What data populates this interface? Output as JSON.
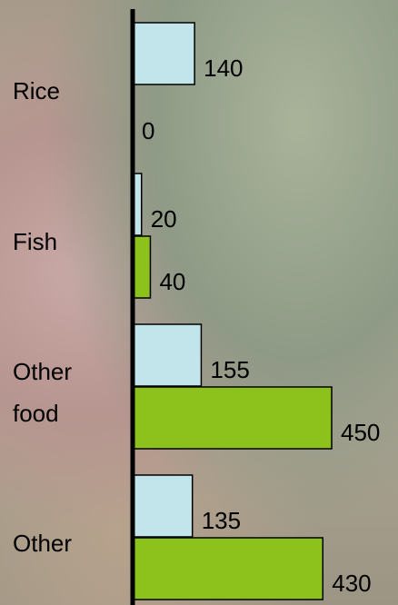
{
  "chart_data": {
    "type": "bar",
    "orientation": "horizontal",
    "categories": [
      "Rice",
      "Fish",
      "Other food",
      "Other"
    ],
    "series": [
      {
        "color": "#c2e5ec",
        "values": [
          140,
          20,
          155,
          135
        ]
      },
      {
        "color": "#8dc21c",
        "values": [
          0,
          40,
          450,
          430
        ]
      }
    ],
    "xlim": [
      0,
      600
    ]
  }
}
